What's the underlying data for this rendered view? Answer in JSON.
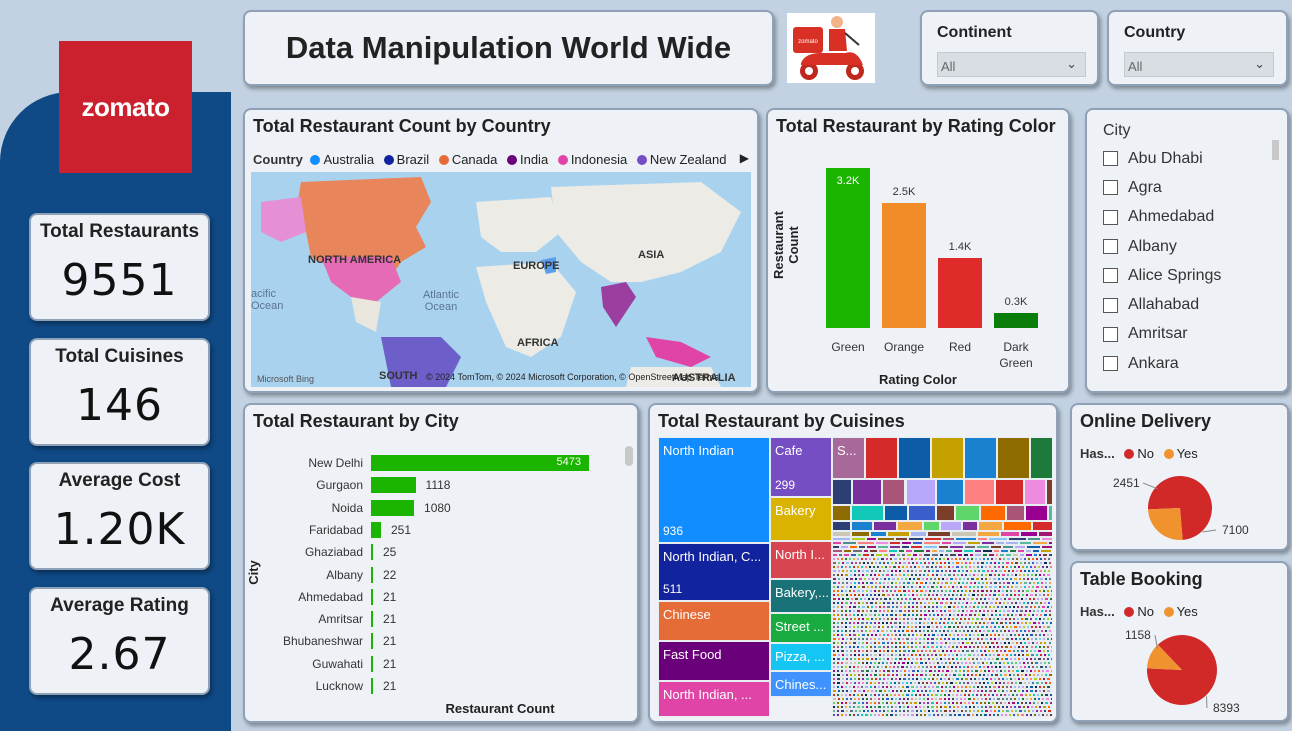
{
  "sidebar": {
    "logo_text": "zomato"
  },
  "kpis": [
    {
      "label": "Total Restaurants",
      "value": "9551"
    },
    {
      "label": "Total Cuisines",
      "value": "146"
    },
    {
      "label": "Average Cost",
      "value": "1.20K"
    },
    {
      "label": "Average Rating",
      "value": "2.67"
    }
  ],
  "header": {
    "title": "Data Manipulation World Wide"
  },
  "filters": {
    "continent": {
      "label": "Continent",
      "value": "All"
    },
    "country": {
      "label": "Country",
      "value": "All"
    }
  },
  "map": {
    "title": "Total Restaurant Count by Country",
    "legend_title": "Country",
    "legend": [
      {
        "name": "Australia",
        "color": "#118dff"
      },
      {
        "name": "Brazil",
        "color": "#12239e"
      },
      {
        "name": "Canada",
        "color": "#e66c37"
      },
      {
        "name": "India",
        "color": "#6b007b"
      },
      {
        "name": "Indonesia",
        "color": "#e044a7"
      },
      {
        "name": "New Zealand",
        "color": "#744ec2"
      }
    ],
    "labels": {
      "north_america": "NORTH AMERICA",
      "europe": "EUROPE",
      "asia": "ASIA",
      "africa": "AFRICA",
      "south": "SOUTH",
      "australia": "AUSTRALIA",
      "atlantic": "Atlantic Ocean",
      "pacific": "acific Ocean",
      "ocean": "Ocean"
    },
    "credits": "© 2024 TomTom, © 2024 Microsoft Corporation, © OpenStreetMap  Terms",
    "bing": "Microsoft Bing"
  },
  "rating_chart": {
    "title": "Total Restaurant by Rating Color",
    "ylabel": "Restaurant Count",
    "xlabel": "Rating Color",
    "chart_data": {
      "type": "bar",
      "categories": [
        "Green",
        "Orange",
        "Red",
        "Dark Green"
      ],
      "values": [
        3200,
        2500,
        1400,
        300
      ],
      "data_labels": [
        "3.2K",
        "2.5K",
        "1.4K",
        "0.3K"
      ],
      "colors": [
        "#1bb400",
        "#f28c28",
        "#e02b2b",
        "#0b7d0b"
      ]
    }
  },
  "city_slicer": {
    "title": "City",
    "items": [
      "Abu Dhabi",
      "Agra",
      "Ahmedabad",
      "Albany",
      "Alice Springs",
      "Allahabad",
      "Amritsar",
      "Ankara"
    ]
  },
  "city_chart": {
    "title": "Total Restaurant by City",
    "ylabel": "City",
    "xlabel": "Restaurant Count",
    "chart_data": {
      "type": "bar",
      "categories": [
        "New Delhi",
        "Gurgaon",
        "Noida",
        "Faridabad",
        "Ghaziabad",
        "Albany",
        "Ahmedabad",
        "Amritsar",
        "Bhubaneshwar",
        "Guwahati",
        "Lucknow"
      ],
      "values": [
        5473,
        1118,
        1080,
        251,
        25,
        22,
        21,
        21,
        21,
        21,
        21
      ],
      "color": "#1bb400"
    }
  },
  "cuisines": {
    "title": "Total Restaurant by Cuisines",
    "cells": [
      {
        "label": "North Indian",
        "value": "936",
        "color": "#118dff"
      },
      {
        "label": "North Indian, C...",
        "value": "511",
        "color": "#12239e"
      },
      {
        "label": "Chinese",
        "value": "",
        "color": "#e66c37"
      },
      {
        "label": "Fast Food",
        "value": "",
        "color": "#6b007b"
      },
      {
        "label": "North Indian, ...",
        "value": "",
        "color": "#e044a7"
      },
      {
        "label": "Cafe",
        "value": "299",
        "color": "#744ec2"
      },
      {
        "label": "Bakery",
        "value": "",
        "color": "#d9b300"
      },
      {
        "label": "North I...",
        "value": "",
        "color": "#d64550"
      },
      {
        "label": "Bakery,...",
        "value": "",
        "color": "#197278"
      },
      {
        "label": "Street ...",
        "value": "",
        "color": "#1aab40"
      },
      {
        "label": "Pizza, ...",
        "value": "",
        "color": "#15c6f4"
      },
      {
        "label": "Chines...",
        "value": "",
        "color": "#4092ff"
      },
      {
        "label": "S...",
        "value": "",
        "color": "#a66999"
      }
    ]
  },
  "online_delivery": {
    "title": "Online Delivery",
    "legend_title": "Has...",
    "chart_data": {
      "type": "pie",
      "categories": [
        "No",
        "Yes"
      ],
      "values": [
        7100,
        2451
      ],
      "colors": [
        "#d12828",
        "#f0932e"
      ]
    }
  },
  "table_booking": {
    "title": "Table Booking",
    "legend_title": "Has...",
    "chart_data": {
      "type": "pie",
      "categories": [
        "No",
        "Yes"
      ],
      "values": [
        8393,
        1158
      ],
      "colors": [
        "#d12828",
        "#f0932e"
      ]
    }
  }
}
